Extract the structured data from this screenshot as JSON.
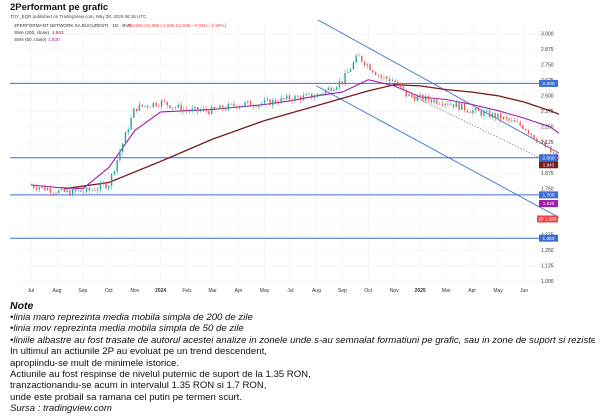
{
  "page": {
    "title": "2Performant pe grafic",
    "published": "TOY_EQR published on TradingView.com, May 28, 2025 06:16 UTC"
  },
  "chart_data": {
    "type": "line",
    "symbol_line": "2PERFORMANT NETWORK SA BUCURESTI · 1D · BVB",
    "ohlc_line": "O1.550 H1.595 L1.505 C1.505 −0.045 (−2.90%)",
    "legend": [
      {
        "label": "SMA (200, close)",
        "value": "1.943",
        "color": "#7a1b1b"
      },
      {
        "label": "SMA (50, close)",
        "value": "1.630",
        "color": "#a21caf"
      }
    ],
    "x_labels": [
      "Jul",
      "Aug",
      "Sep",
      "Oct",
      "Nov",
      "2024",
      "Feb",
      "Mar",
      "Apr",
      "May",
      "Jul",
      "Aug",
      "Sep",
      "Oct",
      "Nov",
      "2025",
      "Mar",
      "Apr",
      "May",
      "Jun"
    ],
    "y_ticks": [
      3.0,
      2.875,
      2.75,
      2.625,
      2.5,
      2.375,
      2.25,
      2.125,
      2.0,
      1.875,
      1.75,
      1.625,
      1.5,
      1.375,
      1.25,
      1.125,
      1.0
    ],
    "y_tick_labels": [
      "3.000",
      "2.875",
      "2.750",
      "2.625",
      "2.500",
      "2.375",
      "2.250",
      "2.125",
      "2.000",
      "1.875",
      "1.750",
      "1.625",
      "1.500",
      "1.375",
      "1.250",
      "1.125",
      "1.000"
    ],
    "ylim": [
      0.98,
      3.08
    ],
    "support_resistance": [
      {
        "value": 2.6,
        "label": "2.600"
      },
      {
        "value": 2.0,
        "label": "2.000"
      },
      {
        "value": 1.7,
        "label": "1.700"
      },
      {
        "value": 1.35,
        "label": "1.350"
      }
    ],
    "badges": [
      {
        "value": 1.943,
        "label": "1.943",
        "color": "#7a1b1b"
      },
      {
        "value": 1.63,
        "label": "1.630",
        "color": "#a21caf"
      },
      {
        "value": 1.505,
        "label": "2P  1.505",
        "color": "#ef4444"
      }
    ],
    "price_x": [
      0,
      1.2,
      2.2,
      3,
      4,
      5,
      6,
      7,
      8,
      9,
      10,
      11,
      12,
      12.6,
      13.5,
      14,
      14.5,
      15,
      16,
      17,
      18,
      19,
      20,
      21,
      22,
      23,
      23.8,
      24.5,
      25,
      25.6
    ],
    "price_y": [
      1.78,
      1.72,
      1.73,
      1.79,
      2.4,
      2.45,
      2.38,
      2.38,
      2.43,
      2.44,
      2.48,
      2.5,
      2.62,
      2.82,
      2.65,
      2.62,
      2.5,
      2.48,
      2.45,
      2.38,
      2.33,
      2.25,
      2.05,
      1.88,
      1.78,
      1.68,
      1.42,
      1.62,
      1.55,
      1.505
    ],
    "sma50_x": [
      0,
      1,
      2,
      3,
      4,
      5,
      6,
      7,
      8,
      9,
      10,
      11,
      12,
      13,
      14,
      15,
      16,
      17,
      18,
      19,
      20,
      21,
      22,
      23,
      24,
      25,
      25.6
    ],
    "sma50_y": [
      1.78,
      1.76,
      1.75,
      1.92,
      2.22,
      2.37,
      2.38,
      2.39,
      2.41,
      2.43,
      2.46,
      2.5,
      2.53,
      2.63,
      2.58,
      2.49,
      2.47,
      2.43,
      2.38,
      2.32,
      2.25,
      2.1,
      1.9,
      1.8,
      1.68,
      1.64,
      1.63
    ],
    "sma200_x": [
      1.3,
      3,
      5,
      7,
      9,
      11,
      13,
      14,
      15,
      16,
      17,
      18,
      19,
      20,
      21,
      22,
      23,
      24,
      25
    ],
    "sma200_y": [
      1.75,
      1.8,
      1.97,
      2.15,
      2.3,
      2.42,
      2.54,
      2.59,
      2.58,
      2.55,
      2.53,
      2.5,
      2.45,
      2.38,
      2.3,
      2.2,
      2.1,
      2.0,
      1.943
    ],
    "channel_upper_x": [
      11,
      25.6
    ],
    "channel_upper_y": [
      3.12,
      1.43
    ],
    "channel_lower_x": [
      11,
      25.6
    ],
    "channel_lower_y": [
      2.58,
      0.92
    ],
    "dotted_mid_x": [
      14.7,
      25.6
    ],
    "dotted_mid_y": [
      2.5,
      1.39
    ]
  },
  "notes": {
    "heading": "Note",
    "bullets": [
      "•linia maro reprezinta media mobila simpla de 200 de zile",
      "•linia mov reprezinta media mobila simpla de 50 de zile",
      "•liniile albastre au fost trasate de autorul acestei analize in zonele unde s-au semnalat formatiuni pe grafic, sau in zone de suport si rezistenta"
    ],
    "paragraph_1": [
      "In ultimul an actiunile 2P au evoluat pe un trend descendent,",
      "apropiindu-se mult de minimele istorice."
    ],
    "paragraph_2": [
      "Actiunile au fost respinse de nivelul puternic de suport de la 1.35 RON,",
      "tranzactionandu-se acum in intervalul 1.35 RON si 1.7 RON,",
      "unde este probail sa ramana cel putin pe termen scurt."
    ],
    "source": "Sursa : tradingview.com"
  },
  "colors": {
    "price_up": "#26a69a",
    "price_down": "#ef5350",
    "line_blue": "#3b6fd6",
    "sma50": "#a21caf",
    "sma200": "#7a1b1b"
  }
}
